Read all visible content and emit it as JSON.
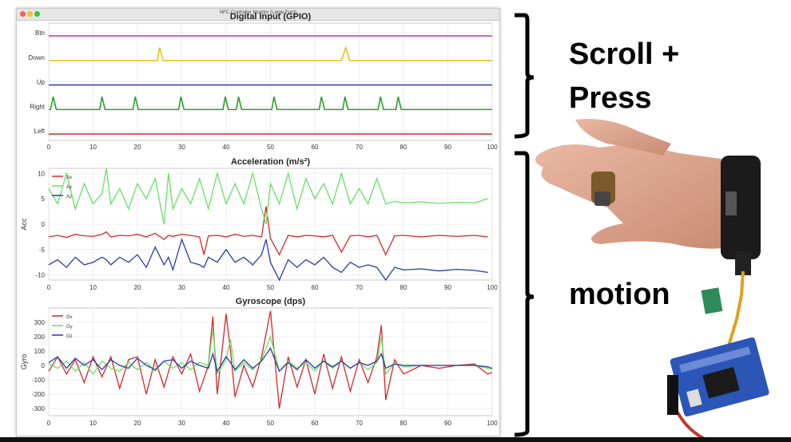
{
  "window": {
    "title": "NFC Controller Monitor (Large Font)"
  },
  "callouts": {
    "scroll": "Scroll +",
    "press": "Press",
    "motion": "motion"
  },
  "colors": {
    "red": "#d62728",
    "green": "#2ca02c",
    "lightgreen": "#66e066",
    "blue": "#2b3aa8",
    "yellow": "#e3c21a",
    "magenta": "#b43cb4"
  },
  "chart_data": [
    {
      "type": "line",
      "title": "Digital Input (GPIO)",
      "xlabel": "",
      "ylabel": "",
      "xlim": [
        0,
        100
      ],
      "xticks": [
        0,
        10,
        20,
        30,
        40,
        50,
        60,
        70,
        80,
        90,
        100
      ],
      "categories": [
        "Btn",
        "Down",
        "Up",
        "Right",
        "Left"
      ],
      "series": [
        {
          "name": "Btn",
          "color": "#b43cb4",
          "x": [
            0,
            100
          ],
          "y": [
            0,
            0
          ]
        },
        {
          "name": "Down",
          "color": "#e3c21a",
          "x": [
            0,
            24.5,
            25,
            25.8,
            66,
            67,
            67.8,
            100
          ],
          "y": [
            0,
            0,
            1,
            0,
            0,
            1,
            0,
            0
          ]
        },
        {
          "name": "Up",
          "color": "#2b3aa8",
          "x": [
            0,
            100
          ],
          "y": [
            0,
            0
          ]
        },
        {
          "name": "Right",
          "color": "#2ca02c",
          "x": [
            0,
            0.4,
            1,
            1.7,
            11.5,
            12,
            12.7,
            19,
            19.5,
            20.2,
            29.3,
            29.8,
            30.5,
            39.3,
            39.8,
            40.5,
            42.3,
            42.8,
            43.5,
            50.3,
            50.8,
            51.5,
            61,
            61.5,
            62.2,
            66.3,
            66.8,
            67.5,
            74.3,
            74.8,
            75.5,
            78.3,
            78.8,
            79.5,
            100
          ],
          "y": [
            0,
            0,
            1,
            0,
            0,
            1,
            0,
            0,
            1,
            0,
            0,
            1,
            0,
            0,
            1,
            0,
            0,
            1,
            0,
            0,
            1,
            0,
            0,
            1,
            0,
            0,
            1,
            0,
            0,
            1,
            0,
            0,
            1,
            0,
            0
          ]
        },
        {
          "name": "Left",
          "color": "#d62728",
          "x": [
            0,
            100
          ],
          "y": [
            0,
            0
          ]
        }
      ]
    },
    {
      "type": "line",
      "title": "Acceleration (m/s²)",
      "xlabel": "",
      "ylabel": "Acc",
      "xlim": [
        0,
        100
      ],
      "ylim": [
        -11,
        11
      ],
      "xticks": [
        0,
        10,
        20,
        30,
        40,
        50,
        60,
        70,
        80,
        90,
        100
      ],
      "yticks": [
        10,
        5,
        0,
        -5,
        -10
      ],
      "x": [
        0,
        2,
        4,
        6,
        8,
        10,
        12,
        13,
        14,
        16,
        18,
        20,
        22,
        24,
        26,
        27,
        28,
        30,
        32,
        34,
        35,
        36,
        38,
        40,
        42,
        44,
        46,
        48,
        49,
        50,
        52,
        54,
        56,
        58,
        60,
        62,
        64,
        66,
        68,
        70,
        72,
        74,
        76,
        78,
        80,
        84,
        88,
        92,
        96,
        99
      ],
      "series": [
        {
          "name": "Ax",
          "color": "#d62728",
          "y": [
            -2.5,
            -2.2,
            -2.6,
            -2,
            -2.3,
            -2.4,
            -2,
            -1.5,
            -2.5,
            -2.2,
            -2.3,
            -2,
            -2.5,
            -1.8,
            -3,
            -2.2,
            -2.4,
            -2,
            -2.2,
            -2.5,
            -6,
            -2.3,
            -2.2,
            -2.5,
            -2,
            -2.4,
            -2.2,
            -2.5,
            3.5,
            -2.8,
            -6,
            -2.2,
            -2.5,
            -2.2,
            -2.3,
            -2.5,
            -2.2,
            -5.5,
            -2.3,
            -2.2,
            -2.5,
            -2.2,
            -6,
            -2.3,
            -2.2,
            -2.5,
            -2.2,
            -2.4,
            -2.2,
            -2.5
          ]
        },
        {
          "name": "Ay",
          "color": "#66e066",
          "y": [
            7,
            4,
            10,
            3,
            8,
            4,
            6,
            11,
            4,
            7,
            3,
            8,
            5,
            9,
            0,
            10,
            3,
            7,
            4,
            9,
            6,
            3,
            10,
            4,
            8,
            4,
            10,
            3,
            0,
            8,
            4,
            10,
            3,
            9,
            5,
            8,
            4,
            10,
            4,
            7,
            4,
            9,
            4,
            4.5,
            4.2,
            4.4,
            4.1,
            4.3,
            4.2,
            5
          ]
        },
        {
          "name": "Az",
          "color": "#2b3aa8",
          "y": [
            -8,
            -7,
            -8.5,
            -6.5,
            -8,
            -7.5,
            -6.5,
            -7,
            -8,
            -6.5,
            -7.5,
            -6,
            -8.5,
            -4.5,
            -8,
            -6.5,
            -9,
            -3,
            -7.5,
            -8,
            -8.5,
            -6.5,
            -7.5,
            -5,
            -7.5,
            -6.5,
            -8,
            -6,
            -3,
            -7.5,
            -11,
            -7,
            -8.5,
            -7,
            -8,
            -6.5,
            -8.5,
            -9.5,
            -7.5,
            -8.5,
            -8,
            -8.5,
            -11,
            -8.5,
            -9,
            -8.8,
            -9.2,
            -8.9,
            -9.1,
            -9.5
          ]
        }
      ]
    },
    {
      "type": "line",
      "title": "Gyroscope (dps)",
      "xlabel": "",
      "ylabel": "Gyro",
      "xlim": [
        0,
        100
      ],
      "ylim": [
        -350,
        400
      ],
      "xticks": [
        0,
        10,
        20,
        30,
        40,
        50,
        60,
        70,
        80,
        90,
        100
      ],
      "yticks": [
        300,
        200,
        100,
        0,
        -100,
        -200,
        -300
      ],
      "x": [
        0,
        2,
        4,
        6,
        8,
        10,
        12,
        14,
        16,
        18,
        20,
        22,
        24,
        26,
        28,
        30,
        32,
        34,
        36,
        37,
        38,
        40,
        41,
        42,
        44,
        46,
        48,
        50,
        52,
        54,
        56,
        58,
        60,
        62,
        64,
        66,
        68,
        70,
        72,
        74,
        75,
        76,
        78,
        80,
        84,
        88,
        92,
        96,
        99,
        100
      ],
      "series": [
        {
          "name": "Gx",
          "color": "#d62728",
          "y": [
            -40,
            60,
            -60,
            40,
            -120,
            60,
            -80,
            60,
            -160,
            40,
            60,
            -200,
            40,
            -150,
            60,
            -60,
            80,
            -180,
            0,
            340,
            -200,
            360,
            100,
            -220,
            0,
            -150,
            60,
            380,
            -300,
            60,
            -150,
            40,
            -200,
            80,
            -160,
            60,
            -180,
            40,
            -120,
            60,
            280,
            -240,
            40,
            -60,
            0,
            -20,
            0,
            10,
            -60,
            -50
          ]
        },
        {
          "name": "Gy",
          "color": "#66e066",
          "y": [
            10,
            -20,
            30,
            -40,
            20,
            -60,
            30,
            -20,
            -40,
            20,
            -30,
            20,
            -40,
            30,
            -20,
            20,
            -30,
            20,
            0,
            250,
            -60,
            40,
            180,
            -40,
            20,
            -30,
            40,
            200,
            -40,
            30,
            -20,
            20,
            -40,
            30,
            -20,
            30,
            -20,
            20,
            -30,
            20,
            200,
            -60,
            20,
            -10,
            0,
            0,
            0,
            0,
            -20,
            -30
          ]
        },
        {
          "name": "Gz",
          "color": "#2b3aa8",
          "y": [
            20,
            60,
            -20,
            50,
            0,
            40,
            -30,
            40,
            0,
            -20,
            50,
            0,
            -30,
            30,
            40,
            -20,
            30,
            0,
            -20,
            80,
            -40,
            60,
            20,
            -30,
            40,
            -20,
            30,
            120,
            -40,
            20,
            -30,
            40,
            -20,
            30,
            -10,
            30,
            -20,
            20,
            0,
            30,
            80,
            -20,
            10,
            0,
            0,
            0,
            0,
            0,
            -10,
            -20
          ]
        }
      ]
    }
  ]
}
